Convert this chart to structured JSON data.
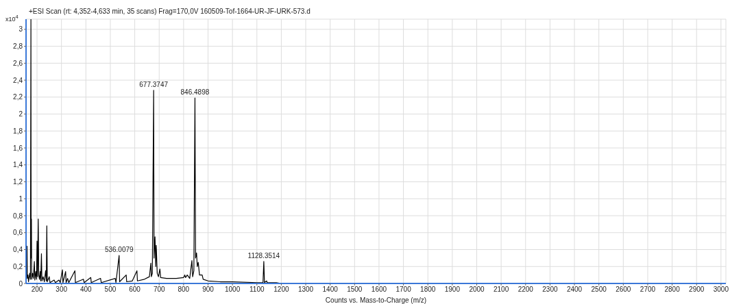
{
  "chart_data": {
    "type": "line",
    "title": "+ESI Scan (rt: 4,352-4,633 min, 35 scans) Frag=170,0V 160509-Tof-1664-UR-JF-URK-573.d",
    "xlabel": "Counts vs. Mass-to-Charge (m/z)",
    "ylabel": "x10$^{4}$",
    "x": [
      158,
      159,
      160,
      163,
      165,
      170,
      173,
      175,
      175.8,
      177,
      178,
      182,
      185,
      189,
      191,
      195,
      198,
      200,
      202,
      205,
      207,
      210,
      213,
      215,
      218,
      220,
      225,
      230,
      235,
      238,
      240,
      242,
      250,
      253,
      270,
      275,
      290,
      295,
      304,
      306,
      317,
      319,
      325,
      330,
      355,
      357,
      390,
      393,
      420,
      422,
      460,
      463,
      520,
      523,
      536,
      538,
      565,
      567,
      590,
      609,
      611,
      640,
      660,
      666,
      668,
      672,
      677.3747,
      679,
      683,
      686,
      688,
      692,
      697,
      703,
      706,
      730,
      770,
      800,
      805,
      808,
      815,
      825,
      834,
      837,
      842,
      846.4898,
      849,
      853,
      856,
      860,
      865,
      876,
      880,
      900,
      950,
      1000,
      1100,
      1125,
      1128.3514,
      1131,
      1140,
      1142,
      1180,
      1200,
      3020
    ],
    "series": [
      {
        "color": "#000000",
        "values": [
          0.08,
          0.44,
          0.06,
          0.1,
          0.02,
          0.12,
          0.05,
          3.12,
          0.3,
          0.76,
          0.05,
          0.12,
          0.06,
          0.26,
          0.04,
          0.14,
          0.05,
          0.5,
          0.08,
          0.76,
          0.1,
          0.05,
          0.14,
          0.03,
          0.35,
          0.03,
          0.08,
          0.02,
          0.15,
          0.03,
          0.68,
          0.02,
          0.08,
          0.01,
          0.04,
          0.01,
          0.04,
          0.01,
          0.16,
          0.01,
          0.14,
          0.01,
          0.06,
          0.01,
          0.15,
          0.01,
          0.05,
          0.01,
          0.07,
          0.01,
          0.06,
          0.01,
          0.06,
          0.01,
          0.33,
          0.02,
          0.1,
          0.02,
          0.03,
          0.15,
          0.03,
          0.05,
          0.08,
          0.24,
          0.08,
          0.12,
          2.28,
          0.3,
          0.55,
          0.2,
          0.45,
          0.12,
          0.08,
          0.17,
          0.07,
          0.06,
          0.06,
          0.07,
          0.1,
          0.07,
          0.1,
          0.06,
          0.27,
          0.08,
          0.15,
          2.19,
          0.3,
          0.36,
          0.2,
          0.25,
          0.1,
          0.1,
          0.05,
          0.03,
          0.02,
          0.02,
          0.01,
          0.01,
          0.26,
          0.01,
          0.03,
          0.01,
          0.01,
          0,
          0
        ]
      }
    ],
    "xlim": [
      155,
      3020
    ],
    "xticks": [
      200,
      300,
      400,
      500,
      600,
      700,
      800,
      900,
      1000,
      1100,
      1200,
      1300,
      1400,
      1500,
      1600,
      1700,
      1800,
      1900,
      2000,
      2100,
      2200,
      2300,
      2400,
      2500,
      2600,
      2700,
      2800,
      2900,
      3000
    ],
    "ylim": [
      0,
      3.12
    ],
    "yticks": [
      0,
      {
        "value": 0.2,
        "label": "0,2"
      },
      {
        "value": 0.4,
        "label": "0,4"
      },
      {
        "value": 0.6,
        "label": "0,6"
      },
      {
        "value": 0.8,
        "label": "0,8"
      },
      1,
      {
        "value": 1.2,
        "label": "1,2"
      },
      {
        "value": 1.4,
        "label": "1,4"
      },
      {
        "value": 1.6,
        "label": "1,6"
      },
      {
        "value": 1.8,
        "label": "1,8"
      },
      2,
      {
        "value": 2.2,
        "label": "2,2"
      },
      {
        "value": 2.4,
        "label": "2,4"
      },
      {
        "value": 2.6,
        "label": "2,6"
      },
      {
        "value": 2.8,
        "label": "2,8"
      },
      3
    ],
    "annotations": [
      {
        "text": "536.0079",
        "x": 536,
        "y": 0.33
      },
      {
        "text": "677.3747",
        "x": 677.3747,
        "y": 2.28
      },
      {
        "text": "846.4898",
        "x": 846.4898,
        "y": 2.19
      },
      {
        "text": "1128.3514",
        "x": 1128.3514,
        "y": 0.26
      }
    ],
    "grid": true,
    "marker": "none",
    "line_style": "solid"
  }
}
